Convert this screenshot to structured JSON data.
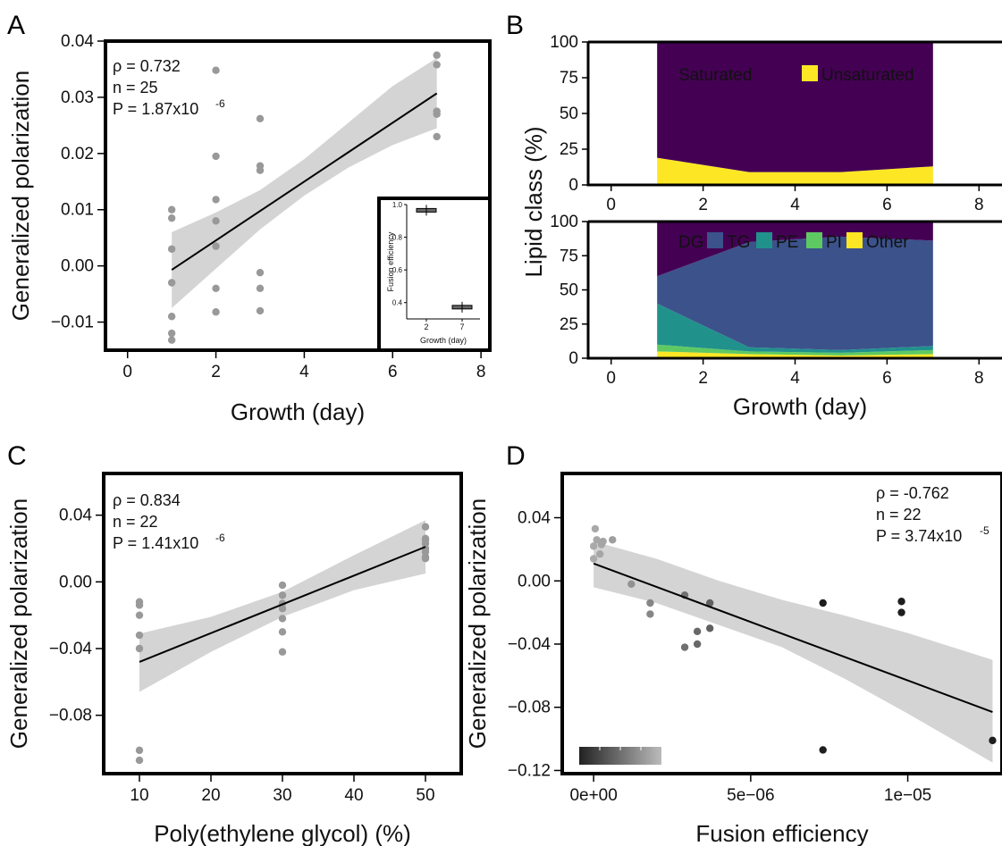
{
  "colors": {
    "point": "#999999",
    "band": "#d4d4d4",
    "fit": "#000000",
    "saturated": "#440154",
    "unsaturated": "#fde725",
    "DG": "#440154",
    "TG": "#3b528b",
    "PE": "#21918c",
    "PI": "#5ec962",
    "Other": "#fde725"
  },
  "chart_data": [
    {
      "panel": "A",
      "type": "scatter",
      "xlabel": "Growth (day)",
      "ylabel": "Generalized polarization",
      "xlim": [
        -0.5,
        8.2
      ],
      "ylim": [
        -0.015,
        0.04
      ],
      "xticks": [
        0,
        2,
        4,
        6,
        8
      ],
      "yticks": [
        -0.01,
        0.0,
        0.01,
        0.02,
        0.03,
        0.04
      ],
      "ytick_labels": [
        "−0.01",
        "0.00",
        "0.01",
        "0.02",
        "0.03",
        "0.04"
      ],
      "stats": [
        "ρ = 0.732",
        "n = 25",
        "P = 1.87x10",
        "-6"
      ],
      "points": [
        [
          1,
          0.01
        ],
        [
          1,
          0.0085
        ],
        [
          1,
          0.003
        ],
        [
          1,
          -0.003
        ],
        [
          1,
          -0.009
        ],
        [
          1,
          -0.012
        ],
        [
          1,
          -0.0132
        ],
        [
          2,
          0.0195
        ],
        [
          2,
          0.0118
        ],
        [
          2,
          0.008
        ],
        [
          2,
          0.0035
        ],
        [
          2,
          -0.004
        ],
        [
          2,
          -0.0082
        ],
        [
          2,
          0.0348
        ],
        [
          3,
          0.0262
        ],
        [
          3,
          0.0178
        ],
        [
          3,
          0.017
        ],
        [
          3,
          -0.0012
        ],
        [
          3,
          -0.004
        ],
        [
          3,
          -0.008
        ],
        [
          7,
          0.0375
        ],
        [
          7,
          0.0358
        ],
        [
          7,
          0.0275
        ],
        [
          7,
          0.027
        ],
        [
          7,
          0.023
        ]
      ],
      "fit": {
        "x": [
          1,
          7
        ],
        "y": [
          -0.0007,
          0.0307
        ]
      },
      "band": {
        "x": [
          1,
          2,
          3,
          4,
          5,
          6,
          7
        ],
        "lower": [
          -0.0075,
          -0.0005,
          0.0065,
          0.0125,
          0.0175,
          0.0215,
          0.0245
        ],
        "upper": [
          0.006,
          0.0095,
          0.0135,
          0.019,
          0.0255,
          0.032,
          0.037
        ]
      },
      "inset": {
        "xlabel": "Growth (day)",
        "ylabel": "Fusion efficiency",
        "categories": [
          "2",
          "7"
        ],
        "values": [
          0.965,
          0.372
        ],
        "ylim": [
          0.3,
          1.0
        ],
        "yticks": [
          0.4,
          0.6,
          0.8,
          1.0
        ],
        "ytick_labels": [
          "0.4",
          "0.6",
          "0.8",
          "1.0"
        ]
      }
    },
    {
      "panel": "B-top",
      "type": "area",
      "ylabel": "Lipid class (%)",
      "xlim": [
        -0.5,
        8.5
      ],
      "ylim": [
        0,
        100
      ],
      "xticks": [
        0,
        2,
        4,
        6,
        8
      ],
      "yticks": [
        0,
        25,
        50,
        75,
        100
      ],
      "x": [
        1,
        3,
        5,
        7
      ],
      "series": [
        {
          "name": "Unsaturated",
          "values": [
            19,
            9,
            9,
            13
          ]
        },
        {
          "name": "Saturated",
          "values": [
            81,
            91,
            91,
            87
          ]
        }
      ],
      "legend": "top"
    },
    {
      "panel": "B-bottom",
      "type": "area",
      "xlabel": "Growth (day)",
      "xlim": [
        -0.5,
        8.5
      ],
      "ylim": [
        0,
        100
      ],
      "xticks": [
        0,
        2,
        4,
        6,
        8
      ],
      "yticks": [
        0,
        25,
        50,
        75,
        100
      ],
      "x": [
        1,
        3,
        5,
        7
      ],
      "series": [
        {
          "name": "Other",
          "values": [
            5,
            3,
            2,
            3
          ]
        },
        {
          "name": "PI",
          "values": [
            5,
            2,
            2,
            3
          ]
        },
        {
          "name": "PE",
          "values": [
            30,
            3,
            2,
            3
          ]
        },
        {
          "name": "TG",
          "values": [
            20,
            77,
            83,
            77
          ]
        },
        {
          "name": "DG",
          "values": [
            40,
            15,
            11,
            14
          ]
        }
      ],
      "legend": "top"
    },
    {
      "panel": "C",
      "type": "scatter",
      "xlabel": "Poly(ethylene glycol) (%)",
      "ylabel": "Generalized polarization",
      "xlim": [
        5,
        55
      ],
      "ylim": [
        -0.115,
        0.065
      ],
      "xticks": [
        10,
        20,
        30,
        40,
        50
      ],
      "yticks": [
        -0.08,
        -0.04,
        0.0,
        0.04
      ],
      "ytick_labels": [
        "−0.08",
        "−0.04",
        "0.00",
        "0.04"
      ],
      "stats": [
        "ρ = 0.834",
        "n = 22",
        "P = 1.41x10",
        "-6"
      ],
      "points": [
        [
          10,
          -0.012
        ],
        [
          10,
          -0.014
        ],
        [
          10,
          -0.02
        ],
        [
          10,
          -0.032
        ],
        [
          10,
          -0.04
        ],
        [
          10,
          -0.101
        ],
        [
          10,
          -0.107
        ],
        [
          30,
          -0.002
        ],
        [
          30,
          -0.008
        ],
        [
          30,
          -0.013
        ],
        [
          30,
          -0.016
        ],
        [
          30,
          -0.022
        ],
        [
          30,
          -0.03
        ],
        [
          30,
          -0.042
        ],
        [
          50,
          0.033
        ],
        [
          50,
          0.026
        ],
        [
          50,
          0.025
        ],
        [
          50,
          0.023
        ],
        [
          50,
          0.02
        ],
        [
          50,
          0.018
        ],
        [
          50,
          0.015
        ],
        [
          50,
          0.014
        ]
      ],
      "fit": {
        "x": [
          10,
          50
        ],
        "y": [
          -0.048,
          0.021
        ]
      },
      "band": {
        "x": [
          10,
          20,
          30,
          40,
          50
        ],
        "lower": [
          -0.066,
          -0.042,
          -0.021,
          -0.005,
          0.005
        ],
        "upper": [
          -0.031,
          -0.021,
          -0.006,
          0.016,
          0.037
        ]
      }
    },
    {
      "panel": "D",
      "type": "scatter",
      "xlabel": "Fusion efficiency",
      "ylabel": "Generalized polarization",
      "xlim": [
        -1e-06,
        1.3e-05
      ],
      "ylim": [
        -0.122,
        0.068
      ],
      "xticks": [
        0,
        5e-06,
        1e-05
      ],
      "xtick_labels": [
        "0e+00",
        "5e−06",
        "1e−05"
      ],
      "yticks": [
        -0.12,
        -0.08,
        -0.04,
        0.0,
        0.04
      ],
      "ytick_labels": [
        "−0.12",
        "−0.08",
        "−0.04",
        "0.00",
        "0.04"
      ],
      "stats": [
        "ρ = -0.762",
        "n = 22",
        "P = 3.74x10",
        "-5"
      ],
      "points": [
        [
          5e-08,
          0.033
        ],
        [
          1e-07,
          0.026
        ],
        [
          3e-07,
          0.025
        ],
        [
          6e-07,
          0.026
        ],
        [
          0.0,
          0.022
        ],
        [
          2.5e-07,
          0.023
        ],
        [
          2e-07,
          0.017
        ],
        [
          0.0,
          0.014
        ],
        [
          1.2e-06,
          -0.002
        ],
        [
          1.8e-06,
          -0.014
        ],
        [
          1.8e-06,
          -0.021
        ],
        [
          2.9e-06,
          -0.009
        ],
        [
          2.9e-06,
          -0.042
        ],
        [
          3.3e-06,
          -0.032
        ],
        [
          3.3e-06,
          -0.04
        ],
        [
          3.7e-06,
          -0.014
        ],
        [
          3.7e-06,
          -0.03
        ],
        [
          7.3e-06,
          -0.014
        ],
        [
          7.3e-06,
          -0.107
        ],
        [
          9.8e-06,
          -0.013
        ],
        [
          9.8e-06,
          -0.02
        ],
        [
          1.27e-05,
          -0.101
        ]
      ],
      "fit": {
        "x": [
          0,
          1.27e-05
        ],
        "y": [
          0.011,
          -0.083
        ]
      },
      "band": {
        "x": [
          0,
          2e-06,
          4e-06,
          6e-06,
          8e-06,
          1e-05,
          1.27e-05
        ],
        "lower": [
          -0.004,
          -0.014,
          -0.028,
          -0.042,
          -0.062,
          -0.084,
          -0.115
        ],
        "upper": [
          0.025,
          0.014,
          0.0,
          -0.012,
          -0.022,
          -0.033,
          -0.05
        ]
      }
    }
  ],
  "panel_labels": [
    "A",
    "B",
    "C",
    "D"
  ]
}
